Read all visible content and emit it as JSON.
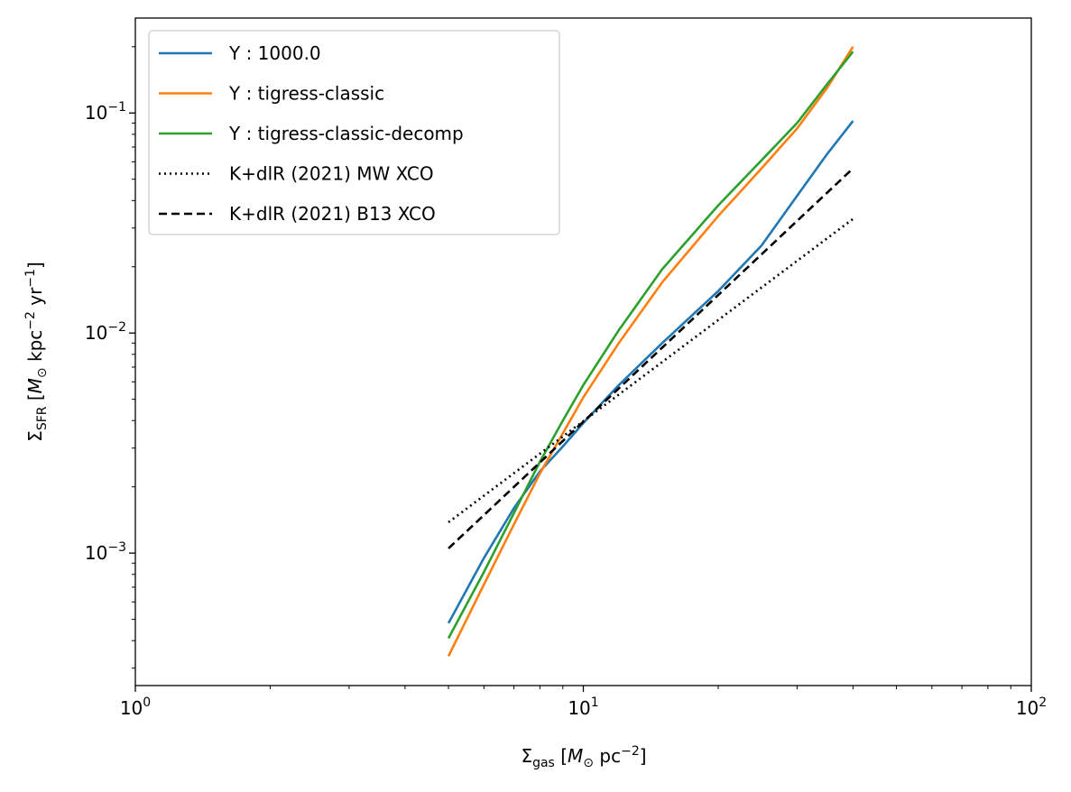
{
  "chart_data": {
    "type": "line",
    "xscale": "log",
    "yscale": "log",
    "xlim": [
      1,
      100
    ],
    "ylim": [
      0.00025,
      0.27
    ],
    "grid": false,
    "legend_position": "top-left",
    "xlabel": {
      "main": "Σ",
      "sub": "gas",
      "pre": " [",
      "math": "M",
      "sun": "⊙",
      "post": " pc",
      "exp": "−2",
      "close": "]"
    },
    "ylabel": {
      "main": "Σ",
      "sub": "SFR",
      "pre": " [",
      "math": "M",
      "sun": "⊙",
      "post": " kpc",
      "exp": "−2",
      "mid": " yr",
      "exp2": "−1",
      "close": "]"
    },
    "x_ticks": [
      {
        "value": 1,
        "base": "10",
        "exp": "0"
      },
      {
        "value": 10,
        "base": "10",
        "exp": "1"
      },
      {
        "value": 100,
        "base": "10",
        "exp": "2"
      }
    ],
    "y_ticks": [
      {
        "value": 0.001,
        "base": "10",
        "exp": "−3"
      },
      {
        "value": 0.01,
        "base": "10",
        "exp": "−2"
      },
      {
        "value": 0.1,
        "base": "10",
        "exp": "−1"
      }
    ],
    "series": [
      {
        "name": "Y : 1000.0",
        "color": "#1f77b4",
        "style": "solid",
        "x": [
          5,
          6,
          7,
          8,
          9,
          10,
          12,
          15,
          20,
          25,
          30,
          35,
          40
        ],
        "y": [
          0.00048,
          0.00095,
          0.0016,
          0.00235,
          0.00305,
          0.0039,
          0.0058,
          0.009,
          0.0155,
          0.025,
          0.042,
          0.065,
          0.092
        ]
      },
      {
        "name": "Y : tigress-classic",
        "color": "#ff7f0e",
        "style": "solid",
        "x": [
          5,
          6,
          7,
          8,
          9,
          10,
          12,
          15,
          20,
          25,
          30,
          35,
          40
        ],
        "y": [
          0.00034,
          0.00072,
          0.00135,
          0.0023,
          0.0035,
          0.0051,
          0.009,
          0.017,
          0.034,
          0.056,
          0.085,
          0.13,
          0.2
        ]
      },
      {
        "name": "Y : tigress-classic-decomp",
        "color": "#2ca02c",
        "style": "solid",
        "x": [
          5,
          6,
          7,
          8,
          9,
          10,
          12,
          15,
          20,
          25,
          30,
          35,
          40
        ],
        "y": [
          0.00041,
          0.00082,
          0.00152,
          0.0026,
          0.004,
          0.0058,
          0.0103,
          0.0195,
          0.038,
          0.061,
          0.09,
          0.135,
          0.19
        ]
      },
      {
        "name": "K+dlR (2021) MW XCO",
        "color": "#000000",
        "style": "dotted",
        "x": [
          5,
          40
        ],
        "y": [
          0.00138,
          0.033
        ]
      },
      {
        "name": "K+dlR (2021) B13 XCO",
        "color": "#000000",
        "style": "dashed",
        "x": [
          5,
          40
        ],
        "y": [
          0.00105,
          0.056
        ]
      }
    ]
  }
}
